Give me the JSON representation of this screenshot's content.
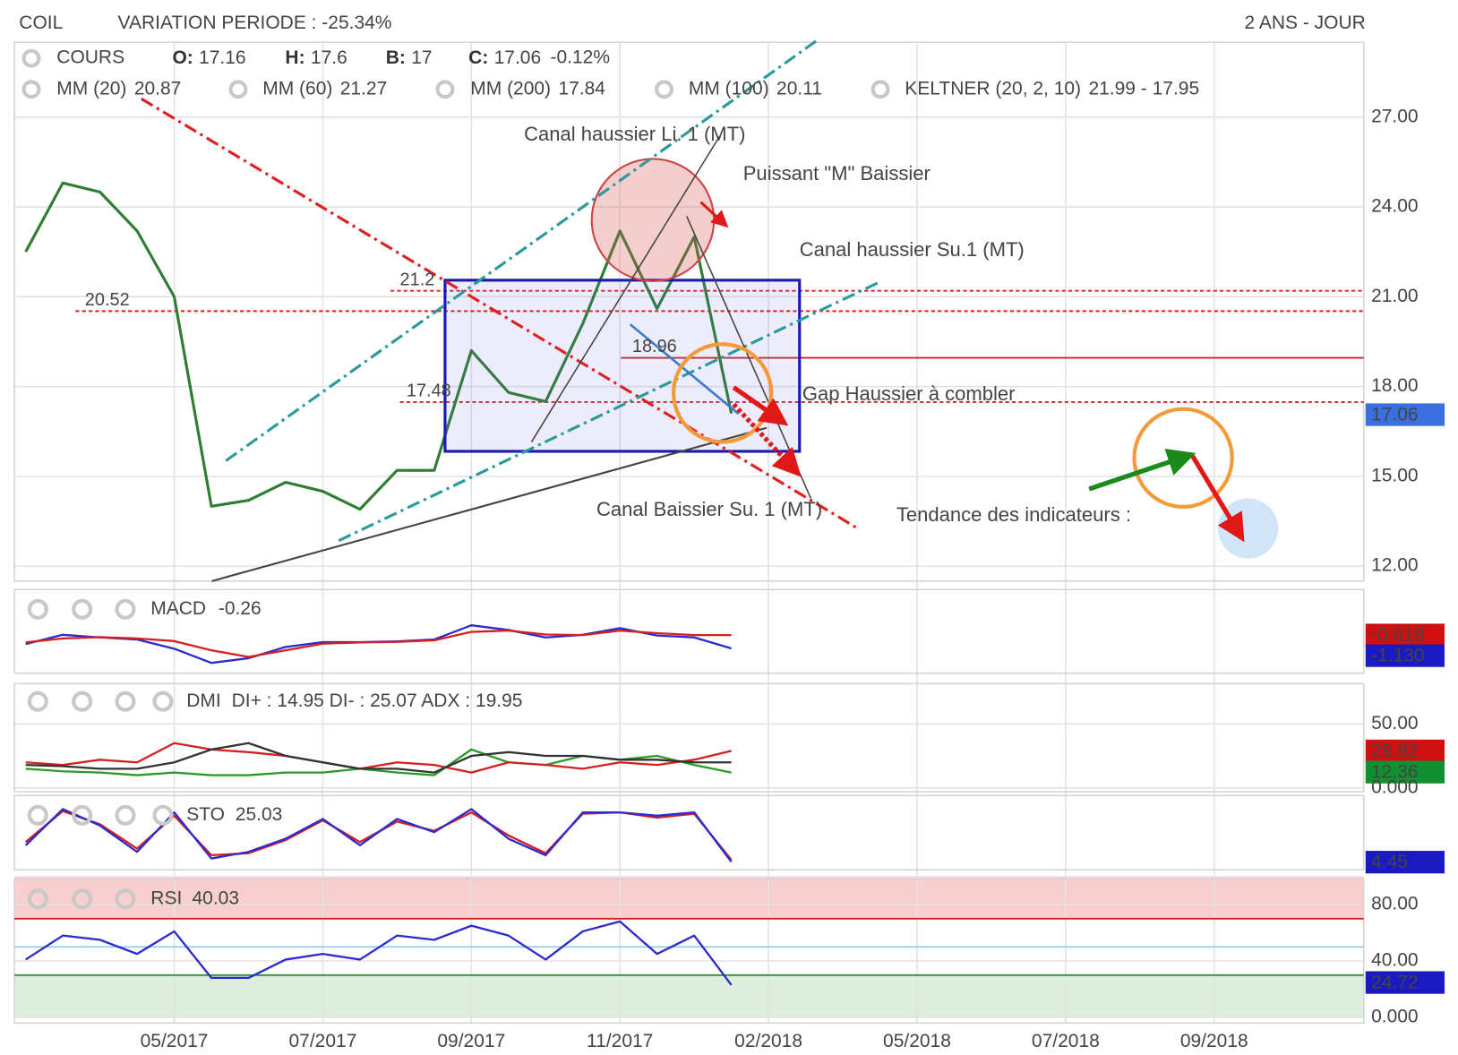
{
  "header": {
    "ticker": "COIL",
    "variation": "VARIATION PERIODE : -25.34%",
    "period": "2 ANS - JOUR"
  },
  "annotations": [
    {
      "text": "Canal haussier Li. 1 (MT)",
      "color": "#2a8f8f"
    },
    {
      "text": "Puissant \"M\" Baissier",
      "color": "#d42020"
    },
    {
      "text": "Canal haussier Su.1 (MT)",
      "color": "#2a8f8f"
    },
    {
      "text": "Gap Haussier à combler",
      "color": "#d42020"
    },
    {
      "text": "Canal Baissier Su. 1 (MT)",
      "color": "#d42020"
    },
    {
      "text": "Tendance des indicateurs :",
      "color": "#1c2fb0"
    }
  ],
  "chart_data": [
    {
      "type": "line",
      "categories": [
        null,
        null,
        null,
        null,
        "05/2017",
        null,
        null,
        null,
        "07/2017",
        null,
        null,
        null,
        "09/2017",
        null,
        null,
        null,
        "11/2017",
        null,
        null,
        null,
        "02/2018",
        null,
        null,
        null,
        "05/2018",
        null,
        null,
        null,
        "07/2018",
        null,
        null,
        null,
        "09/2018",
        null,
        null,
        null,
        null
      ],
      "series": [
        {
          "name": "COURS",
          "color": "#2e7d32",
          "values": [
            22.5,
            24.8,
            24.5,
            23.2,
            21,
            14,
            14.2,
            14.8,
            14.5,
            13.9,
            15.2,
            15.2,
            19.2,
            17.8,
            17.5,
            20.1,
            23.2,
            20.6,
            23,
            17.1,
            null,
            null,
            null,
            null,
            null,
            null,
            null,
            null,
            null,
            null,
            null,
            null,
            null,
            null,
            null,
            null,
            null
          ]
        }
      ],
      "ohlc": [
        {
          "key": "O:",
          "value": 17.16
        },
        {
          "key": "H:",
          "value": 17.6
        },
        {
          "key": "B:",
          "value": 17
        },
        {
          "key": "C:",
          "value": 17.06
        }
      ],
      "change": "-0.12%",
      "overlays": [
        {
          "name": "MM (20)",
          "value": 20.87,
          "color": "#e02020"
        },
        {
          "name": "MM (60)",
          "value": 21.27,
          "color": "#f0a020"
        },
        {
          "name": "MM (200)",
          "value": 17.84,
          "color": "#3a9a6a"
        },
        {
          "name": "MM (100)",
          "value": 20.11,
          "color": "#30c0d0"
        },
        {
          "name": "KELTNER (20, 2, 10)",
          "value": "21.99 - 17.95",
          "color": "#108010"
        }
      ],
      "levels": [
        {
          "value": 21.2,
          "style": "dashed",
          "color": "#e02020"
        },
        {
          "value": 20.52,
          "style": "dashed",
          "color": "#e02020"
        },
        {
          "value": 18.96,
          "style": "solid",
          "color": "#d42020"
        },
        {
          "value": 17.48,
          "style": "dashed",
          "color": "#e02020"
        }
      ],
      "ylim": [
        11.5,
        29.5
      ],
      "yticks": [
        {
          "value": 12,
          "label": "12.00"
        },
        {
          "value": 15,
          "label": "15.00"
        },
        {
          "value": 18,
          "label": "18.00"
        },
        {
          "value": 21,
          "label": "21.00"
        },
        {
          "value": 24,
          "label": "24.00"
        },
        {
          "value": 27,
          "label": "27.00"
        }
      ],
      "tags": [
        {
          "value": 17.06,
          "color": "#3a6fe0"
        }
      ],
      "grid": true
    },
    {
      "type": "line",
      "title": "MACD",
      "value": -0.26,
      "ylim": [
        -2,
        1
      ],
      "yticks": [],
      "series": [
        {
          "color": "#2a2ad0",
          "values": [
            -0.96,
            -0.61,
            -0.71,
            -0.79,
            -1.14,
            -1.68,
            -1.5,
            -1.07,
            -0.89,
            -0.89,
            -0.86,
            -0.79,
            -0.25,
            -0.43,
            -0.71,
            -0.61,
            -0.36,
            -0.64,
            -0.71,
            -1.13
          ]
        },
        {
          "color": "#d42020",
          "values": [
            -0.9,
            -0.75,
            -0.7,
            -0.75,
            -0.85,
            -1.2,
            -1.45,
            -1.2,
            -0.95,
            -0.9,
            -0.88,
            -0.82,
            -0.5,
            -0.45,
            -0.6,
            -0.62,
            -0.45,
            -0.55,
            -0.62,
            -0.62
          ]
        }
      ],
      "tags": [
        {
          "value": -0.618,
          "color": "#d01010"
        },
        {
          "value": -1.13,
          "label": "-1.130",
          "color": "#1a1ac0"
        }
      ]
    },
    {
      "type": "line",
      "title": "DMI",
      "value": "DI+ : 14.95 DI- : 25.07 ADX : 19.95",
      "ylim": [
        0,
        80
      ],
      "yticks": [
        {
          "value": 50,
          "label": "50.00"
        },
        {
          "value": 0,
          "label": "0.000"
        }
      ],
      "series": [
        {
          "color": "#2a9a2a",
          "values": [
            15,
            13,
            12,
            10,
            12,
            10,
            10,
            12,
            12,
            15,
            12,
            10,
            30,
            20,
            18,
            25,
            22,
            25,
            18,
            12
          ]
        },
        {
          "color": "#d42020",
          "values": [
            20,
            18,
            22,
            20,
            35,
            30,
            28,
            25,
            20,
            15,
            20,
            18,
            12,
            20,
            18,
            15,
            20,
            18,
            22,
            29
          ]
        },
        {
          "color": "#333333",
          "values": [
            18,
            17,
            15,
            15,
            20,
            30,
            35,
            25,
            20,
            15,
            15,
            12,
            25,
            28,
            25,
            25,
            22,
            22,
            20,
            20
          ]
        }
      ],
      "tags": [
        {
          "value": 28.92,
          "color": "#d01010"
        },
        {
          "value": 12.36,
          "color": "#109030"
        }
      ]
    },
    {
      "type": "line",
      "title": "STO",
      "value": 25.03,
      "ylim": [
        0,
        100
      ],
      "yticks": [],
      "series": [
        {
          "color": "#d42020",
          "values": [
            35,
            82,
            62,
            25,
            75,
            15,
            18,
            38,
            68,
            35,
            66,
            52,
            80,
            45,
            18,
            78,
            80,
            72,
            78,
            8
          ]
        },
        {
          "color": "#2a2ad0",
          "values": [
            30,
            85,
            60,
            20,
            80,
            10,
            20,
            40,
            70,
            30,
            70,
            50,
            85,
            40,
            15,
            80,
            80,
            75,
            80,
            5
          ]
        }
      ],
      "tags": [
        {
          "value": 4.45,
          "color": "#1a1ac0"
        }
      ]
    },
    {
      "type": "line",
      "title": "RSI",
      "value": 40.03,
      "ylim": [
        0,
        100
      ],
      "yticks": [
        {
          "value": 80,
          "label": "80.00"
        },
        {
          "value": 40,
          "label": "40.00"
        },
        {
          "value": 0,
          "label": "0.000"
        }
      ],
      "zones": [
        {
          "from": 70,
          "to": 100,
          "color": "#f8cfcf"
        },
        {
          "from": 0,
          "to": 30,
          "color": "#dcefdc"
        }
      ],
      "levels": [
        {
          "value": 70,
          "style": "solid",
          "color": "#d42020"
        },
        {
          "value": 50,
          "style": "solid",
          "color": "#9ccfe8"
        },
        {
          "value": 30,
          "style": "solid",
          "color": "#3a8a3a"
        }
      ],
      "series": [
        {
          "color": "#2a2ad0",
          "values": [
            41,
            58,
            55,
            45,
            61,
            28,
            28,
            41,
            45,
            41,
            58,
            55,
            65,
            58,
            41,
            61,
            68,
            45,
            58,
            23
          ]
        }
      ],
      "tags": [
        {
          "value": 24.72,
          "color": "#1a1ac0"
        }
      ]
    }
  ]
}
